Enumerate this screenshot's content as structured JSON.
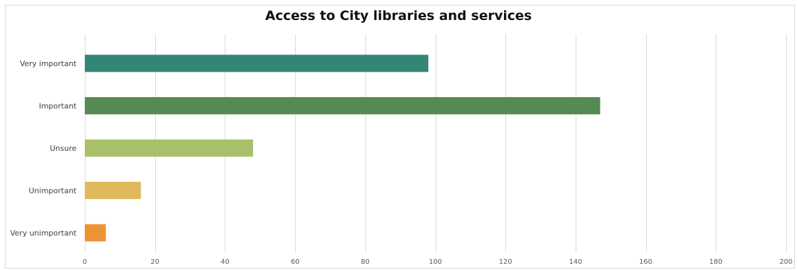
{
  "chart_data": {
    "type": "bar",
    "orientation": "horizontal",
    "title": "Access to City libraries and services",
    "categories": [
      "Very important",
      "Important",
      "Unsure",
      "Unimportant",
      "Very unimportant"
    ],
    "values": [
      98,
      147,
      48,
      16,
      6
    ],
    "colors": [
      "#338675",
      "#578a52",
      "#a9c06a",
      "#dfb95c",
      "#ee9332"
    ],
    "xlim": [
      0,
      200
    ],
    "xticks": [
      0,
      20,
      40,
      60,
      80,
      100,
      120,
      140,
      160,
      180,
      200
    ],
    "grid": "vertical",
    "legend": "none"
  }
}
